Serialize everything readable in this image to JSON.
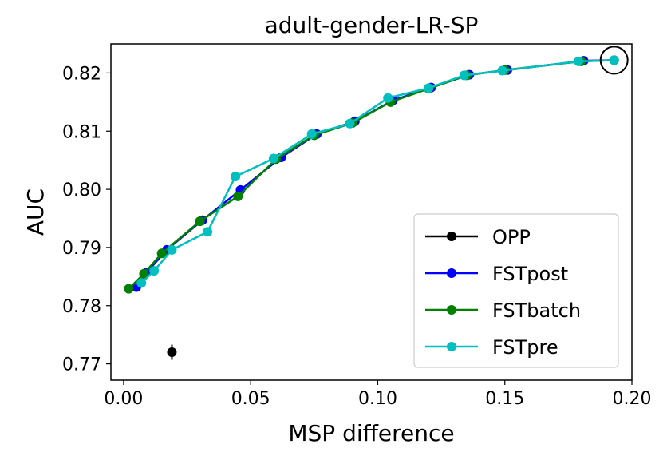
{
  "chart_data": {
    "type": "line",
    "title": "adult-gender-LR-SP",
    "xlabel": "MSP difference",
    "ylabel": "AUC",
    "xlim": [
      -0.005,
      0.2
    ],
    "ylim": [
      0.7672,
      0.825
    ],
    "xticks": [
      0.0,
      0.05,
      0.1,
      0.15,
      0.2
    ],
    "xtick_labels": [
      "0.00",
      "0.05",
      "0.10",
      "0.15",
      "0.20"
    ],
    "yticks": [
      0.77,
      0.78,
      0.79,
      0.8,
      0.81,
      0.82
    ],
    "ytick_labels": [
      "0.77",
      "0.78",
      "0.79",
      "0.80",
      "0.81",
      "0.82"
    ],
    "legend_position": "lower-right",
    "series": [
      {
        "name": "OPP",
        "color": "#000000",
        "x": [
          0.019
        ],
        "y": [
          0.772
        ],
        "yerr": [
          0.0013
        ]
      },
      {
        "name": "FSTpost",
        "color": "#0000ff",
        "x": [
          0.005,
          0.009,
          0.017,
          0.031,
          0.046,
          0.062,
          0.076,
          0.091,
          0.106,
          0.121,
          0.136,
          0.151,
          0.181,
          0.193
        ],
        "y": [
          0.7832,
          0.7857,
          0.7896,
          0.7947,
          0.7999,
          0.8055,
          0.8095,
          0.8117,
          0.8153,
          0.8175,
          0.8197,
          0.8205,
          0.8221,
          0.8222
        ]
      },
      {
        "name": "FSTbatch",
        "color": "#008000",
        "x": [
          0.002,
          0.008,
          0.015,
          0.03,
          0.045,
          0.06,
          0.075,
          0.09,
          0.105,
          0.12,
          0.135,
          0.15,
          0.18,
          0.193
        ],
        "y": [
          0.7829,
          0.7855,
          0.789,
          0.7945,
          0.7988,
          0.8052,
          0.8093,
          0.8114,
          0.815,
          0.8173,
          0.8196,
          0.8205,
          0.822,
          0.8222
        ]
      },
      {
        "name": "FSTpre",
        "color": "#00bfbf",
        "x": [
          0.007,
          0.012,
          0.019,
          0.033,
          0.044,
          0.059,
          0.074,
          0.089,
          0.104,
          0.12,
          0.134,
          0.149,
          0.179,
          0.193
        ],
        "y": [
          0.7839,
          0.786,
          0.7896,
          0.7927,
          0.8022,
          0.8053,
          0.8095,
          0.8113,
          0.8157,
          0.8174,
          0.8196,
          0.8204,
          0.822,
          0.8222
        ]
      }
    ],
    "annotations": [
      {
        "type": "circle-marker",
        "x": 0.193,
        "y": 0.8222,
        "note": "highlighted endpoint"
      }
    ]
  }
}
